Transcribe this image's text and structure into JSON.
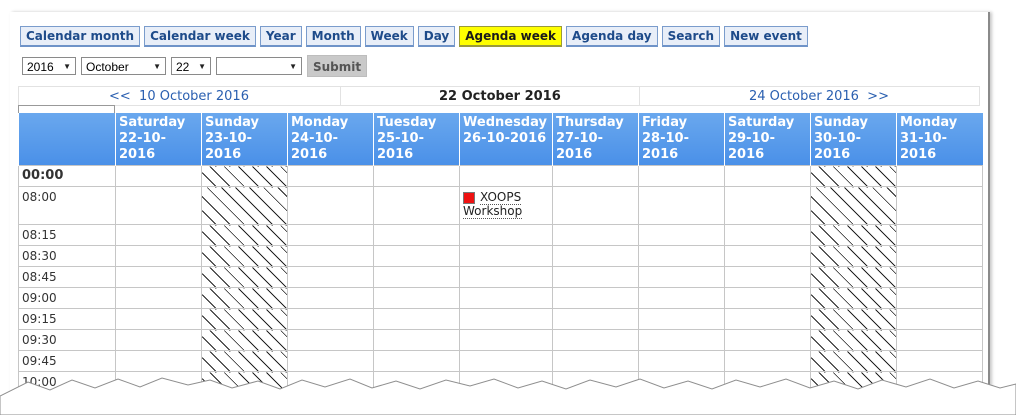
{
  "tabs": [
    {
      "label": "Calendar month",
      "active": false
    },
    {
      "label": "Calendar week",
      "active": false
    },
    {
      "label": "Year",
      "active": false
    },
    {
      "label": "Month",
      "active": false
    },
    {
      "label": "Week",
      "active": false
    },
    {
      "label": "Day",
      "active": false
    },
    {
      "label": "Agenda week",
      "active": true
    },
    {
      "label": "Agenda day",
      "active": false
    },
    {
      "label": "Search",
      "active": false
    },
    {
      "label": "New event",
      "active": false
    }
  ],
  "controls": {
    "year": "2016",
    "month": "October",
    "day": "22",
    "extra": "",
    "submit_label": "Submit"
  },
  "nav": {
    "prev_label": "<<  10 October 2016",
    "current": "22 October 2016",
    "next_label": "24 October 2016  >>"
  },
  "days": [
    {
      "name": "Saturday",
      "date": "22-10-2016",
      "weekend": false
    },
    {
      "name": "Sunday",
      "date": "23-10-2016",
      "weekend": true
    },
    {
      "name": "Monday",
      "date": "24-10-2016",
      "weekend": false
    },
    {
      "name": "Tuesday",
      "date": "25-10-2016",
      "weekend": false
    },
    {
      "name": "Wednesday",
      "date": "26-10-2016",
      "weekend": false
    },
    {
      "name": "Thursday",
      "date": "27-10-2016",
      "weekend": false
    },
    {
      "name": "Friday",
      "date": "28-10-2016",
      "weekend": false
    },
    {
      "name": "Saturday",
      "date": "29-10-2016",
      "weekend": false
    },
    {
      "name": "Sunday",
      "date": "30-10-2016",
      "weekend": true
    },
    {
      "name": "Monday",
      "date": "31-10-2016",
      "weekend": false
    }
  ],
  "times": [
    "00:00",
    "08:00",
    "08:15",
    "08:30",
    "08:45",
    "09:00",
    "09:15",
    "09:30",
    "09:45",
    "10:00"
  ],
  "event": {
    "title": "XOOPS Workshop",
    "color": "#ee1111",
    "time": "08:00",
    "day": "Wednesday"
  }
}
